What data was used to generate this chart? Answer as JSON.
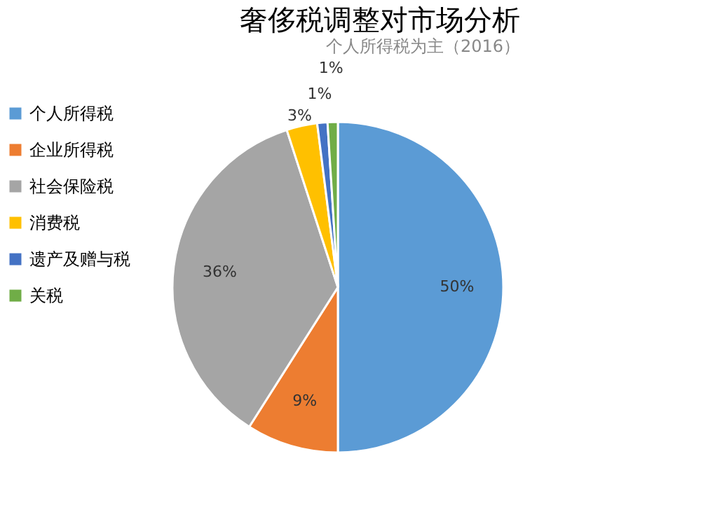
{
  "chart_data": {
    "type": "pie",
    "title": "奢侈税调整对市场分析",
    "subtitle": "个人所得税为主（2016）",
    "categories": [
      "个人所得税",
      "企业所得税",
      "社会保险税",
      "消费税",
      "遗产及赠与税",
      "关税"
    ],
    "values": [
      50,
      9,
      36,
      3,
      1,
      1
    ],
    "colors": [
      "#5b9bd5",
      "#ed7d31",
      "#a5a5a5",
      "#ffc000",
      "#4472c4",
      "#70ad47"
    ],
    "value_labels": [
      "50%",
      "9%",
      "36%",
      "3%",
      "1%",
      "1%"
    ],
    "legend": "left"
  }
}
